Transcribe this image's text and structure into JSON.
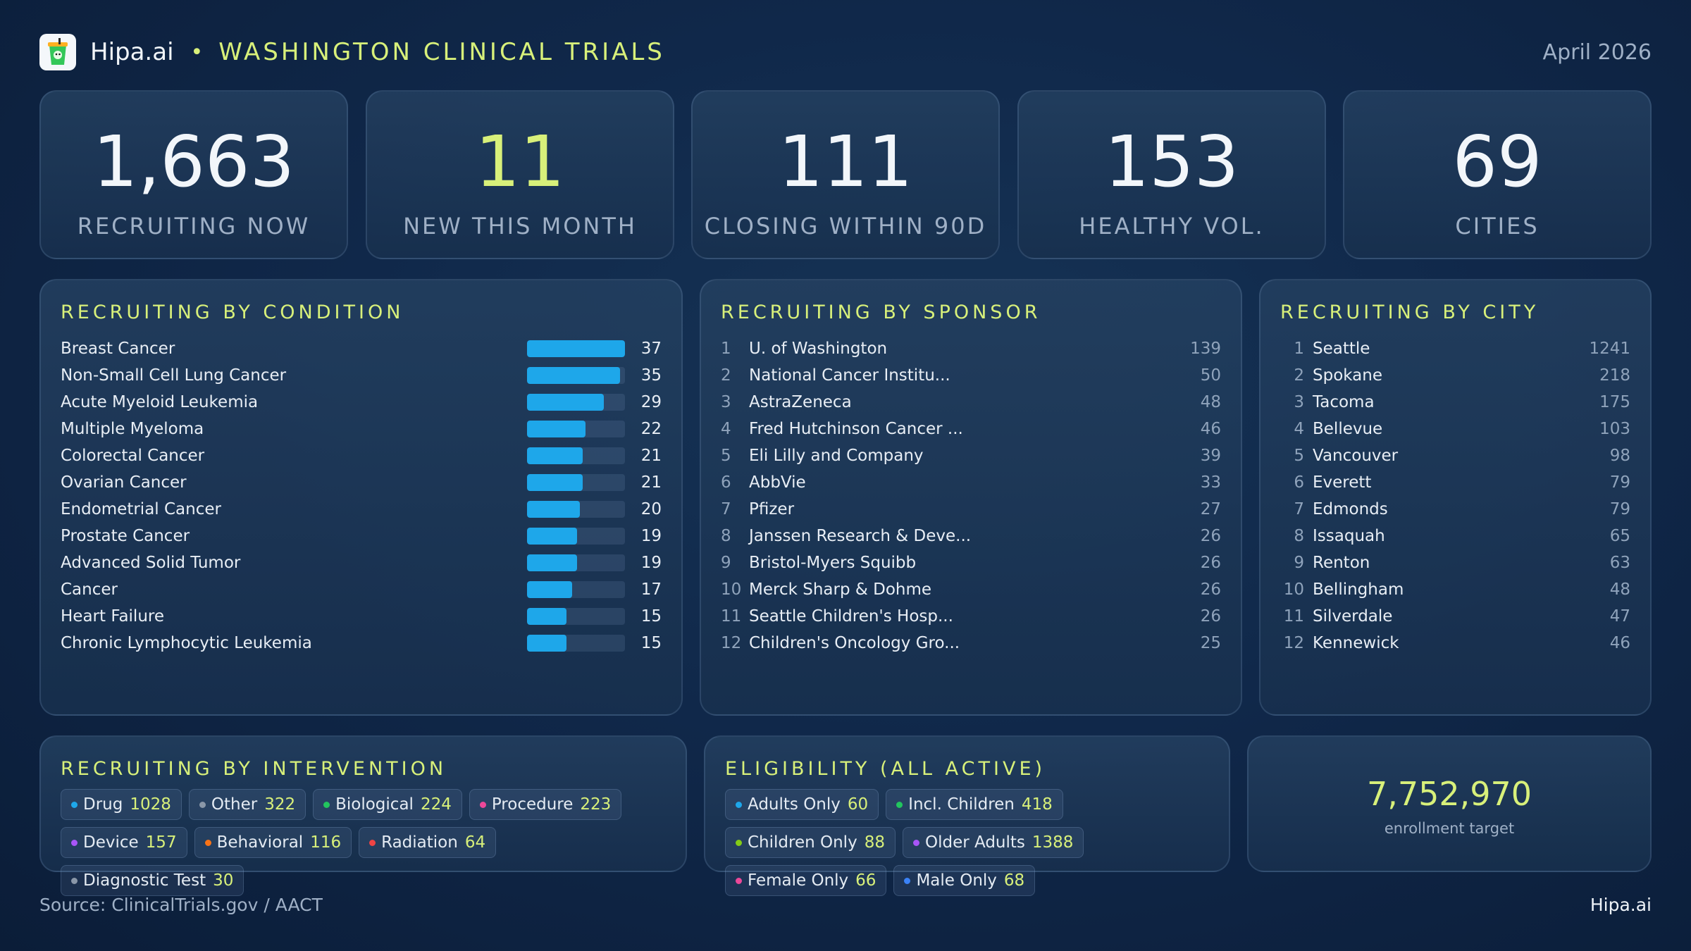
{
  "header": {
    "brand": "Hipa.ai",
    "bullet": "•",
    "title": "WASHINGTON CLINICAL TRIALS",
    "date": "April 2026"
  },
  "kpis": [
    {
      "value": "1,663",
      "label": "RECRUITING NOW"
    },
    {
      "value": "11",
      "label": "NEW THIS MONTH"
    },
    {
      "value": "111",
      "label": "CLOSING WITHIN 90D"
    },
    {
      "value": "153",
      "label": "HEALTHY VOL."
    },
    {
      "value": "69",
      "label": "CITIES"
    }
  ],
  "by_condition": {
    "title": "RECRUITING BY CONDITION",
    "max": 37,
    "items": [
      {
        "name": "Breast Cancer",
        "count": 37
      },
      {
        "name": "Non-Small Cell Lung Cancer",
        "count": 35
      },
      {
        "name": "Acute Myeloid Leukemia",
        "count": 29
      },
      {
        "name": "Multiple Myeloma",
        "count": 22
      },
      {
        "name": "Colorectal Cancer",
        "count": 21
      },
      {
        "name": "Ovarian Cancer",
        "count": 21
      },
      {
        "name": "Endometrial Cancer",
        "count": 20
      },
      {
        "name": "Prostate Cancer",
        "count": 19
      },
      {
        "name": "Advanced Solid Tumor",
        "count": 19
      },
      {
        "name": "Cancer",
        "count": 17
      },
      {
        "name": "Heart Failure",
        "count": 15
      },
      {
        "name": "Chronic Lymphocytic Leukemia",
        "count": 15
      }
    ]
  },
  "by_sponsor": {
    "title": "RECRUITING BY SPONSOR",
    "items": [
      {
        "rank": "1",
        "name": "U. of Washington",
        "count": "139"
      },
      {
        "rank": "2",
        "name": "National Cancer Institu...",
        "count": "50"
      },
      {
        "rank": "3",
        "name": "AstraZeneca",
        "count": "48"
      },
      {
        "rank": "4",
        "name": "Fred Hutchinson Cancer ...",
        "count": "46"
      },
      {
        "rank": "5",
        "name": "Eli Lilly and Company",
        "count": "39"
      },
      {
        "rank": "6",
        "name": "AbbVie",
        "count": "33"
      },
      {
        "rank": "7",
        "name": "Pfizer",
        "count": "27"
      },
      {
        "rank": "8",
        "name": "Janssen Research & Deve...",
        "count": "26"
      },
      {
        "rank": "9",
        "name": "Bristol-Myers Squibb",
        "count": "26"
      },
      {
        "rank": "10",
        "name": "Merck Sharp & Dohme",
        "count": "26"
      },
      {
        "rank": "11",
        "name": "Seattle Children's Hosp...",
        "count": "26"
      },
      {
        "rank": "12",
        "name": "Children's Oncology Gro...",
        "count": "25"
      }
    ]
  },
  "by_city": {
    "title": "RECRUITING BY CITY",
    "items": [
      {
        "rank": "1",
        "name": "Seattle",
        "count": "1241"
      },
      {
        "rank": "2",
        "name": "Spokane",
        "count": "218"
      },
      {
        "rank": "3",
        "name": "Tacoma",
        "count": "175"
      },
      {
        "rank": "4",
        "name": "Bellevue",
        "count": "103"
      },
      {
        "rank": "5",
        "name": "Vancouver",
        "count": "98"
      },
      {
        "rank": "6",
        "name": "Everett",
        "count": "79"
      },
      {
        "rank": "7",
        "name": "Edmonds",
        "count": "79"
      },
      {
        "rank": "8",
        "name": "Issaquah",
        "count": "65"
      },
      {
        "rank": "9",
        "name": "Renton",
        "count": "63"
      },
      {
        "rank": "10",
        "name": "Bellingham",
        "count": "48"
      },
      {
        "rank": "11",
        "name": "Silverdale",
        "count": "47"
      },
      {
        "rank": "12",
        "name": "Kennewick",
        "count": "46"
      }
    ]
  },
  "by_intervention": {
    "title": "RECRUITING BY INTERVENTION",
    "items": [
      {
        "label": "Drug",
        "count": "1028",
        "color": "#1ea7ea"
      },
      {
        "label": "Other",
        "count": "322",
        "color": "#8a97a8"
      },
      {
        "label": "Biological",
        "count": "224",
        "color": "#22c55e"
      },
      {
        "label": "Procedure",
        "count": "223",
        "color": "#ec4899"
      },
      {
        "label": "Device",
        "count": "157",
        "color": "#a855f7"
      },
      {
        "label": "Behavioral",
        "count": "116",
        "color": "#f97316"
      },
      {
        "label": "Radiation",
        "count": "64",
        "color": "#ef4444"
      },
      {
        "label": "Diagnostic Test",
        "count": "30",
        "color": "#8a97a8"
      }
    ]
  },
  "eligibility": {
    "title": "ELIGIBILITY (ALL ACTIVE)",
    "items": [
      {
        "label": "Adults Only",
        "count": "60",
        "color": "#1ea7ea"
      },
      {
        "label": "Incl. Children",
        "count": "418",
        "color": "#22c55e"
      },
      {
        "label": "Children Only",
        "count": "88",
        "color": "#84cc16"
      },
      {
        "label": "Older Adults",
        "count": "1388",
        "color": "#a855f7"
      },
      {
        "label": "Female Only",
        "count": "66",
        "color": "#ec4899"
      },
      {
        "label": "Male Only",
        "count": "68",
        "color": "#3b82f6"
      }
    ]
  },
  "enrollment": {
    "value": "7,752,970",
    "label": "enrollment target"
  },
  "footer": {
    "source": "Source: ClinicalTrials.gov / AACT",
    "brand": "Hipa.ai"
  },
  "colors": {
    "accent": "#d8f07a",
    "bar": "#1ea7ea"
  }
}
